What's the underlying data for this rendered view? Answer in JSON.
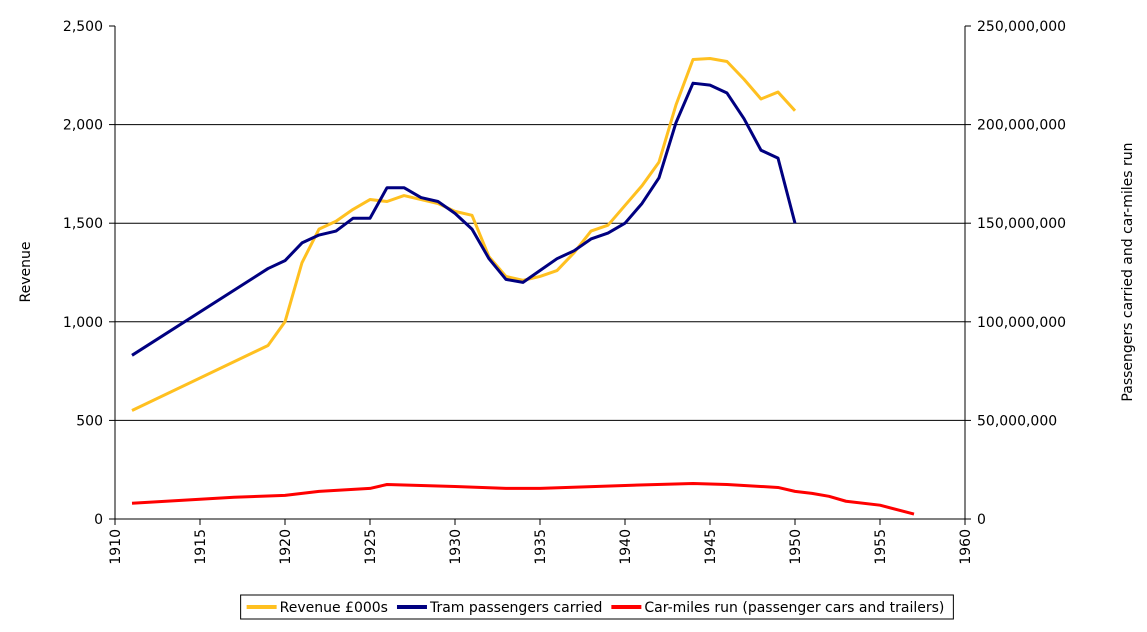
{
  "chart_data": {
    "type": "line",
    "y_label": "Revenue",
    "y2_label": "Passengers carried and car-miles run",
    "xlim": [
      1910,
      1960
    ],
    "xticks": [
      1910,
      1915,
      1920,
      1925,
      1930,
      1935,
      1940,
      1945,
      1950,
      1955,
      1960
    ],
    "ylim": [
      0,
      2500
    ],
    "yticks": [
      0,
      500,
      {
        "value": 1000,
        "label": "1,000"
      },
      {
        "value": 1500,
        "label": "1,500"
      },
      {
        "value": 2000,
        "label": "2,000"
      },
      {
        "value": 2500,
        "label": "2,500"
      }
    ],
    "y2lim": [
      0,
      250000000
    ],
    "y2ticks": [
      0,
      {
        "value": 50000000,
        "label": "50,000,000"
      },
      {
        "value": 100000000,
        "label": "100,000,000"
      },
      {
        "value": 150000000,
        "label": "150,000,000"
      },
      {
        "value": 200000000,
        "label": "200,000,000"
      },
      {
        "value": 250000000,
        "label": "250,000,000"
      }
    ],
    "grid": true,
    "legend": "bottom",
    "series": [
      {
        "name": "Revenue £000s",
        "color": "#ffc020",
        "x": [
          1911,
          1919,
          1920,
          1921,
          1922,
          1923,
          1924,
          1925,
          1926,
          1927,
          1928,
          1929,
          1930,
          1931,
          1932,
          1933,
          1934,
          1935,
          1936,
          1937,
          1938,
          1939,
          1940,
          1941,
          1942,
          1943,
          1944,
          1945,
          1946,
          1947,
          1948,
          1949,
          1950
        ],
        "values": [
          550,
          880,
          1000,
          1300,
          1470,
          1510,
          1570,
          1620,
          1610,
          1640,
          1620,
          1600,
          1560,
          1540,
          1330,
          1230,
          1210,
          1230,
          1260,
          1350,
          1460,
          1490,
          1590,
          1690,
          1810,
          2100,
          2330,
          2335,
          2320,
          2230,
          2130,
          2165,
          2070
        ]
      },
      {
        "name": "Tram passengers carried",
        "color": "#000080",
        "axis": "y2",
        "x": [
          1911,
          1919,
          1920,
          1921,
          1922,
          1923,
          1924,
          1925,
          1926,
          1927,
          1928,
          1929,
          1930,
          1931,
          1932,
          1933,
          1934,
          1935,
          1936,
          1937,
          1938,
          1939,
          1940,
          1941,
          1942,
          1943,
          1944,
          1945,
          1946,
          1947,
          1948,
          1949,
          1950
        ],
        "values": [
          83000000,
          127000000,
          131000000,
          140000000,
          144000000,
          146000000,
          152500000,
          152500000,
          168000000,
          168000000,
          163000000,
          161000000,
          155000000,
          147000000,
          132000000,
          121500000,
          120000000,
          126000000,
          132000000,
          136000000,
          142000000,
          145000000,
          150000000,
          160000000,
          173000000,
          201000000,
          221000000,
          220000000,
          216000000,
          203000000,
          187000000,
          183000000,
          150000000
        ]
      },
      {
        "name": "Car-miles run (passenger cars and trailers)",
        "color": "#ff0000",
        "axis": "y2",
        "x": [
          1911,
          1915,
          1917,
          1920,
          1922,
          1925,
          1926,
          1930,
          1933,
          1935,
          1940,
          1944,
          1946,
          1949,
          1950,
          1951,
          1952,
          1953,
          1955,
          1957
        ],
        "values": [
          8000000,
          10000000,
          11000000,
          12000000,
          14000000,
          15500000,
          17500000,
          16500000,
          15500000,
          15500000,
          17000000,
          18000000,
          17500000,
          16000000,
          14000000,
          13000000,
          11500000,
          9000000,
          7000000,
          2500000
        ]
      }
    ]
  }
}
